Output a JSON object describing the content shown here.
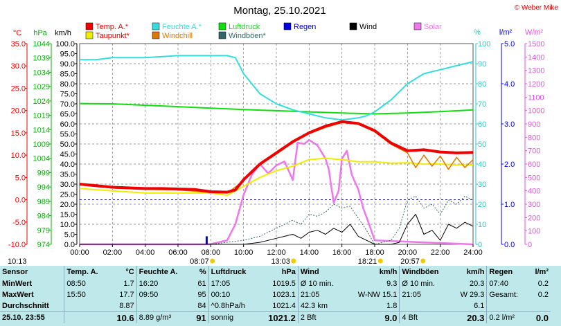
{
  "title": "Montag, 25.10.2021",
  "copyright": "© Weber Mike",
  "colors": {
    "temp": "#ee0000",
    "feuchte": "#33dddd",
    "luftdruck": "#11dd11",
    "wind": "#000000",
    "solar": "#ee77ee",
    "taupunkt": "#eeee00",
    "windchill": "#dd7700",
    "windboeen": "#336666",
    "regen": "#0000dd",
    "grid": "#777777"
  },
  "legend": [
    {
      "label": "Temp. A.*",
      "color": "#ee0000"
    },
    {
      "label": "Feuchte A.*",
      "color": "#33dddd"
    },
    {
      "label": "Luftdruck",
      "color": "#11dd11"
    },
    {
      "label": "Regen",
      "color": "#0000dd"
    },
    {
      "label": "Wind",
      "color": "#000000"
    },
    {
      "label": "Solar",
      "color": "#ee77ee"
    },
    {
      "label": "Taupunkt*",
      "color": "#eeee00"
    },
    {
      "label": "Windchill",
      "color": "#dd7700"
    },
    {
      "label": "Windböen*",
      "color": "#336666"
    }
  ],
  "chart_data": {
    "type": "line",
    "title": "Montag, 25.10.2021",
    "x_ticks": [
      "00:00",
      "02:00",
      "04:00",
      "06:00",
      "08:00",
      "10:00",
      "12:00",
      "14:00",
      "16:00",
      "18:00",
      "20:00",
      "22:00",
      "24:00"
    ],
    "axes": {
      "temp": {
        "unit": "°C",
        "range": [
          -10,
          35
        ],
        "ticks": [
          "35.0",
          "30.0",
          "25.0",
          "20.0",
          "15.0",
          "10.0",
          "5.0",
          "0.0",
          "-5.0",
          "-10.0"
        ]
      },
      "pressure": {
        "unit": "hPa",
        "range": [
          974,
          1044
        ],
        "ticks": [
          "1044",
          "1039",
          "1034",
          "1029",
          "1024",
          "1019",
          "1014",
          "1009",
          "1004",
          "999",
          "994",
          "989",
          "984",
          "979",
          "974"
        ]
      },
      "wind": {
        "unit": "km/h",
        "range": [
          0,
          100
        ],
        "ticks": [
          "100.0",
          "95.0",
          "90.0",
          "85.0",
          "80.0",
          "75.0",
          "70.0",
          "65.0",
          "60.0",
          "55.0",
          "50.0",
          "45.0",
          "40.0",
          "35.0",
          "30.0",
          "25.0",
          "20.0",
          "15.0",
          "10.0",
          "5.0",
          "0.0"
        ]
      },
      "humidity": {
        "unit": "%",
        "range": [
          0,
          100
        ],
        "ticks": [
          "100",
          "90",
          "80",
          "70",
          "60",
          "50",
          "40",
          "30",
          "20",
          "10",
          "0"
        ]
      },
      "rain": {
        "unit": "l/m²",
        "range": [
          0,
          5
        ],
        "ticks": [
          "5.0",
          "4.0",
          "3.0",
          "2.0",
          "1.0",
          "0.0"
        ]
      },
      "solar": {
        "unit": "W/m²",
        "range": [
          0,
          1500
        ],
        "ticks": [
          "1500",
          "1400",
          "1300",
          "1200",
          "1100",
          "1000",
          "900",
          "800",
          "700",
          "600",
          "500",
          "400",
          "300",
          "200",
          "100",
          "0"
        ]
      }
    },
    "series": [
      {
        "name": "Temp. A.*",
        "axis": "temp",
        "hours": [
          0,
          2,
          4,
          5,
          6,
          7,
          8,
          9,
          9.5,
          10,
          11,
          12,
          13,
          14,
          15,
          16,
          17,
          18,
          19,
          20,
          21,
          22,
          23,
          24
        ],
        "values": [
          3.5,
          2.8,
          2.5,
          2.5,
          2.4,
          2.3,
          1.8,
          1.7,
          2.2,
          4.5,
          8,
          10.5,
          13,
          15,
          16.5,
          17.5,
          17.1,
          15.5,
          12.7,
          11,
          11.2,
          10.7,
          10.5,
          10.6
        ]
      },
      {
        "name": "Taupunkt*",
        "axis": "temp",
        "hours": [
          0,
          2,
          4,
          6,
          8,
          9,
          10,
          11,
          12,
          13,
          14,
          15,
          16,
          17,
          18,
          19,
          20,
          21,
          22,
          23,
          24
        ],
        "values": [
          2.5,
          2,
          1.5,
          1.5,
          1.5,
          1,
          3,
          5,
          6.5,
          7.5,
          9,
          9.3,
          9,
          8.5,
          8.5,
          8.2,
          8.3,
          8,
          8,
          7.8,
          7.8
        ]
      },
      {
        "name": "Windchill",
        "axis": "temp",
        "hours": [
          0,
          2,
          4,
          6,
          8,
          9,
          10,
          11,
          12,
          13,
          14,
          15,
          16,
          17,
          18,
          19,
          20,
          20.5,
          21,
          21.5,
          22,
          22.5,
          23,
          23.5,
          24
        ],
        "values": [
          3.3,
          2.6,
          2.3,
          2.2,
          1.6,
          1.5,
          4.2,
          7.8,
          10.2,
          12.8,
          14.8,
          16.2,
          17.3,
          16.9,
          15.2,
          12.4,
          10.5,
          7.2,
          10,
          7.5,
          9.8,
          6.8,
          9.5,
          7.2,
          9
        ]
      },
      {
        "name": "Feuchte A.*",
        "axis": "humidity",
        "hours": [
          0,
          1,
          2,
          4,
          6,
          8,
          9,
          9.5,
          10,
          11,
          12,
          13,
          14,
          15,
          16,
          17,
          17.5,
          18,
          19,
          20,
          21,
          22,
          23,
          24
        ],
        "values": [
          92,
          92,
          93,
          93,
          94,
          94,
          94,
          93,
          85,
          75,
          70,
          67,
          65,
          63,
          62,
          63,
          64,
          66,
          72,
          80,
          85,
          87,
          89,
          91
        ]
      },
      {
        "name": "Luftdruck",
        "axis": "pressure",
        "hours": [
          0,
          2,
          4,
          6,
          8,
          10,
          12,
          14,
          16,
          18,
          20,
          22,
          24
        ],
        "values": [
          1023.1,
          1023,
          1022.5,
          1022,
          1021.5,
          1021,
          1020.6,
          1020.2,
          1019.8,
          1019.5,
          1019.8,
          1020.3,
          1020.9
        ]
      },
      {
        "name": "Wind",
        "axis": "wind",
        "hours": [
          0,
          8,
          10,
          11,
          12,
          12.5,
          13,
          13.5,
          14,
          14.5,
          15,
          15.5,
          16,
          16.5,
          17,
          17.5,
          18,
          19,
          19.5,
          20,
          20.5,
          21,
          21.5,
          22,
          22.5,
          23,
          23.5,
          24
        ],
        "values": [
          0,
          0,
          0,
          1,
          3,
          4,
          5,
          3,
          6,
          7,
          5,
          8,
          6,
          10,
          4,
          2,
          0,
          0,
          1,
          10,
          15,
          5,
          7,
          2,
          10,
          8,
          11,
          9
        ]
      },
      {
        "name": "Windböen*",
        "axis": "wind",
        "hours": [
          0,
          8,
          10,
          11,
          12,
          12.5,
          13,
          13.5,
          14,
          14.5,
          15,
          15.5,
          16,
          16.5,
          17,
          17.5,
          18,
          19,
          19.5,
          20,
          20.5,
          21,
          21.5,
          22,
          22.5,
          23,
          23.5,
          24
        ],
        "values": [
          0,
          0,
          2,
          4,
          8,
          10,
          12,
          10,
          15,
          14,
          16,
          20,
          18,
          19,
          13,
          7,
          0,
          2,
          8,
          22,
          24,
          18,
          20,
          15,
          22,
          20,
          24,
          22
        ]
      },
      {
        "name": "Solar",
        "axis": "solar",
        "hours": [
          0,
          7.5,
          8,
          9,
          9.5,
          10,
          10.5,
          11,
          11.5,
          12,
          12.5,
          13,
          13.3,
          13.7,
          14,
          14.5,
          15,
          15.2,
          15.5,
          15.8,
          16,
          16.3,
          16.6,
          17,
          17.3,
          17.6,
          18,
          24
        ],
        "values": [
          0,
          0,
          2,
          30,
          150,
          370,
          520,
          600,
          530,
          590,
          620,
          480,
          760,
          750,
          780,
          740,
          640,
          560,
          310,
          400,
          640,
          700,
          520,
          410,
          270,
          170,
          30,
          0
        ]
      },
      {
        "name": "Regen",
        "axis": "rain",
        "bars": [
          {
            "hour": 7.75,
            "value": 0.2
          }
        ]
      }
    ],
    "reference_line": {
      "axis": "temp",
      "value": 0
    },
    "events": [
      {
        "label": "10:13",
        "hour": 10.2
      },
      {
        "label": "08:07",
        "hour": 8.1
      },
      {
        "label": "13:03",
        "hour": 13.05
      },
      {
        "label": "18:21",
        "hour": 18.35
      },
      {
        "label": "20:57",
        "hour": 20.95
      }
    ]
  },
  "summary": {
    "headers": [
      "Sensor",
      "Temp. A.",
      "°C",
      "Feuchte A.",
      "%",
      "Luftdruck",
      "hPa",
      "Wind",
      "km/h",
      "Windböen",
      "km/h",
      "Regen",
      "l/m²"
    ],
    "rows": [
      [
        "MinWert",
        "08:50",
        "1.7",
        "16:20",
        "61",
        "17:05",
        "1019.5",
        "Ø 10 min.",
        "9.3",
        "Ø 10 min.",
        "20.3",
        "07:40",
        "0.2"
      ],
      [
        "MaxWert",
        "15:50",
        "17.7",
        "09:50",
        "95",
        "00:10",
        "1023.1",
        "21:05",
        "W-NW 15.1",
        "21:05",
        "W 29.3",
        "Gesamt:",
        "0.2"
      ],
      [
        "Durchschnitt",
        "",
        "8.87",
        "",
        "84",
        "^0.8hPa/h",
        "1021.4",
        "42.3 km",
        "1.8",
        "",
        "6.1",
        "",
        ""
      ],
      [
        "25.10. 23:55",
        "",
        "10.6",
        "8.89 g/m³",
        "91",
        "sonnig",
        "1021.2",
        "2 Bft",
        "9.0",
        "4 Bft",
        "20.3",
        "0.2 l/m²",
        "0.0"
      ]
    ]
  }
}
